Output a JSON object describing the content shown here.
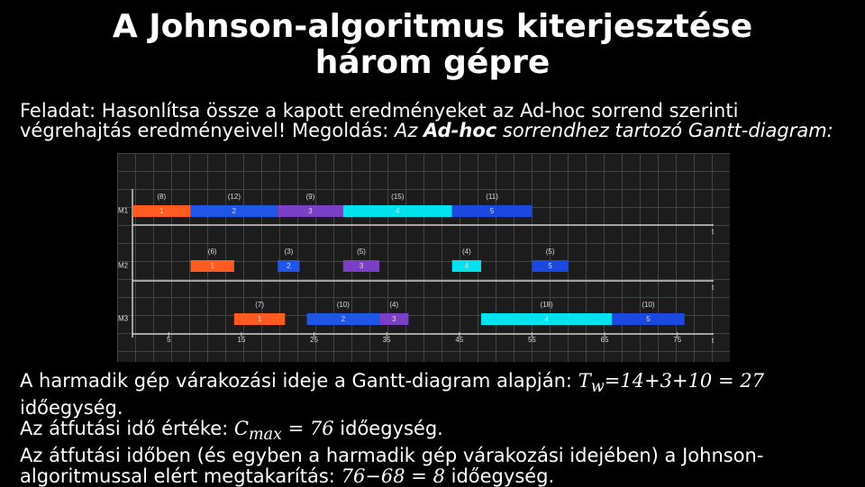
{
  "title": "A Johnson-algoritmus kiterjesztése három gépre",
  "task": {
    "intro": "Feladat: Hasonlítsa össze a kapott eredményeket az Ad-hoc sorrend szerinti végrehajtás eredményeivel!",
    "solution_label": "Megoldás:",
    "solution_text_1": "Az",
    "solution_bold": "Ad-hoc",
    "solution_text_2": "sorrendhez tartozó Gantt-diagram:"
  },
  "gantt": {
    "xlim": [
      0,
      80
    ],
    "xticks": [
      5,
      15,
      25,
      35,
      45,
      55,
      65,
      75
    ],
    "axis_label": "t",
    "machines": [
      {
        "name": "M1",
        "jobs": [
          {
            "label": "1",
            "duration_label": "(8)",
            "start": 0,
            "end": 8,
            "color": "#ff5a1f"
          },
          {
            "label": "2",
            "duration_label": "(12)",
            "start": 8,
            "end": 20,
            "color": "#1f56e6"
          },
          {
            "label": "3",
            "duration_label": "(9)",
            "start": 20,
            "end": 29,
            "color": "#7b3fc6"
          },
          {
            "label": "4",
            "duration_label": "(15)",
            "start": 29,
            "end": 44,
            "color": "#00e3ef"
          },
          {
            "label": "5",
            "duration_label": "(11)",
            "start": 44,
            "end": 55,
            "color": "#1b48df"
          }
        ]
      },
      {
        "name": "M2",
        "jobs": [
          {
            "label": "1",
            "duration_label": "(6)",
            "start": 8,
            "end": 14,
            "color": "#ff5a1f"
          },
          {
            "label": "2",
            "duration_label": "(3)",
            "start": 20,
            "end": 23,
            "color": "#1f56e6"
          },
          {
            "label": "3",
            "duration_label": "(5)",
            "start": 29,
            "end": 34,
            "color": "#7b3fc6"
          },
          {
            "label": "4",
            "duration_label": "(4)",
            "start": 44,
            "end": 48,
            "color": "#00e3ef"
          },
          {
            "label": "5",
            "duration_label": "(5)",
            "start": 55,
            "end": 60,
            "color": "#1b48df"
          }
        ]
      },
      {
        "name": "M3",
        "jobs": [
          {
            "label": "1",
            "duration_label": "(7)",
            "start": 14,
            "end": 21,
            "color": "#ff5a1f"
          },
          {
            "label": "2",
            "duration_label": "(10)",
            "start": 24,
            "end": 34,
            "color": "#1f56e6"
          },
          {
            "label": "3",
            "duration_label": "(4)",
            "start": 34,
            "end": 38,
            "color": "#7b3fc6"
          },
          {
            "label": "4",
            "duration_label": "(18)",
            "start": 48,
            "end": 66,
            "color": "#00e3ef"
          },
          {
            "label": "5",
            "duration_label": "(10)",
            "start": 66,
            "end": 76,
            "color": "#1b48df"
          }
        ]
      }
    ]
  },
  "results": [
    {
      "text": "A harmadik gép várakozási ideje a Gantt-diagram alapján:",
      "math": "T",
      "math_sub": "w",
      "math_rest": "=14+3+10 = 27",
      "unit": "időegység."
    },
    {
      "text": "Az átfutási idő értéke:",
      "math": "C",
      "math_sub": "max",
      "math_rest": "= 76",
      "unit": "időegység."
    },
    {
      "text": "Az átfutási időben (és egyben a harmadik gép várakozási idejében) a Johnson-algoritmussal elért megtakarítás:",
      "math": "76−68 = 8",
      "unit": "időegység."
    }
  ]
}
